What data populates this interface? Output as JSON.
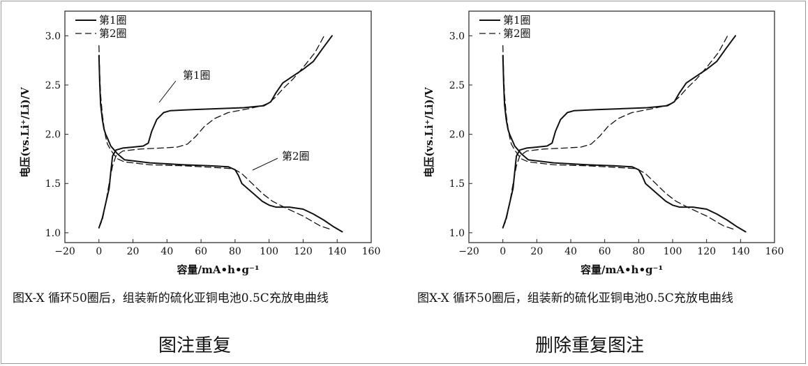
{
  "panels": [
    {
      "caption": "图X-X 循环50圈后，组装新的硫化亚铜电池0.5C充放电曲线",
      "label": "图注重复"
    },
    {
      "caption": "图X-X 循环50圈后，组装新的硫化亚铜电池0.5C充放电曲线",
      "label": "删除重复图注"
    }
  ],
  "chart_data": [
    {
      "type": "line",
      "xlabel": "容量/mA•h•g⁻¹",
      "ylabel": "电压(vs.Li⁺/Li)/V",
      "xlim": [
        -20,
        160
      ],
      "ylim": [
        0.9,
        3.25
      ],
      "xticks": [
        "−20",
        "0",
        "20",
        "40",
        "60",
        "80",
        "100",
        "120",
        "140",
        "160"
      ],
      "yticks": [
        "1.0",
        "1.5",
        "2.0",
        "2.5",
        "3.0"
      ],
      "legend": {
        "position": "top-left",
        "entries": [
          "第1圈",
          "第2圈"
        ]
      },
      "annotations": [
        "第1圈",
        "第2圈"
      ],
      "series": [
        {
          "name": "第1圈",
          "style": "solid",
          "role": "discharge",
          "points": [
            [
              0,
              2.8
            ],
            [
              0.5,
              2.5
            ],
            [
              1,
              2.3
            ],
            [
              2,
              2.15
            ],
            [
              3,
              2.05
            ],
            [
              4,
              2.0
            ],
            [
              5,
              1.96
            ],
            [
              7,
              1.88
            ],
            [
              9,
              1.84
            ],
            [
              11,
              1.8
            ],
            [
              15,
              1.74
            ],
            [
              30,
              1.71
            ],
            [
              50,
              1.69
            ],
            [
              65,
              1.68
            ],
            [
              76,
              1.67
            ],
            [
              80,
              1.64
            ],
            [
              82,
              1.58
            ],
            [
              84,
              1.5
            ],
            [
              88,
              1.44
            ],
            [
              92,
              1.38
            ],
            [
              96,
              1.32
            ],
            [
              100,
              1.28
            ],
            [
              104,
              1.26
            ],
            [
              112,
              1.26
            ],
            [
              120,
              1.24
            ],
            [
              126,
              1.19
            ],
            [
              132,
              1.13
            ],
            [
              138,
              1.06
            ],
            [
              143,
              1.01
            ]
          ]
        },
        {
          "name": "第1圈",
          "style": "solid",
          "role": "charge",
          "points": [
            [
              0,
              1.05
            ],
            [
              2,
              1.15
            ],
            [
              4,
              1.3
            ],
            [
              6,
              1.45
            ],
            [
              7,
              1.62
            ],
            [
              8,
              1.78
            ],
            [
              10,
              1.84
            ],
            [
              14,
              1.86
            ],
            [
              20,
              1.87
            ],
            [
              26,
              1.88
            ],
            [
              29,
              1.91
            ],
            [
              31,
              2.03
            ],
            [
              34,
              2.15
            ],
            [
              38,
              2.22
            ],
            [
              42,
              2.24
            ],
            [
              55,
              2.25
            ],
            [
              70,
              2.26
            ],
            [
              85,
              2.27
            ],
            [
              97,
              2.29
            ],
            [
              101,
              2.33
            ],
            [
              104,
              2.42
            ],
            [
              108,
              2.52
            ],
            [
              114,
              2.59
            ],
            [
              120,
              2.66
            ],
            [
              126,
              2.74
            ],
            [
              131,
              2.86
            ],
            [
              137,
              3.0
            ]
          ]
        },
        {
          "name": "第2圈",
          "style": "dashed",
          "role": "discharge",
          "points": [
            [
              0,
              2.9
            ],
            [
              0.5,
              2.6
            ],
            [
              1,
              2.4
            ],
            [
              2,
              2.2
            ],
            [
              3,
              2.07
            ],
            [
              4,
              1.97
            ],
            [
              5,
              1.9
            ],
            [
              7,
              1.84
            ],
            [
              9,
              1.79
            ],
            [
              11,
              1.75
            ],
            [
              15,
              1.72
            ],
            [
              30,
              1.69
            ],
            [
              50,
              1.68
            ],
            [
              70,
              1.66
            ],
            [
              79,
              1.65
            ],
            [
              84,
              1.6
            ],
            [
              90,
              1.5
            ],
            [
              96,
              1.4
            ],
            [
              102,
              1.32
            ],
            [
              110,
              1.25
            ],
            [
              120,
              1.17
            ],
            [
              130,
              1.07
            ],
            [
              137,
              1.03
            ]
          ]
        },
        {
          "name": "第2圈",
          "style": "dashed",
          "role": "charge",
          "points": [
            [
              0,
              1.05
            ],
            [
              2,
              1.13
            ],
            [
              4,
              1.3
            ],
            [
              6,
              1.5
            ],
            [
              8,
              1.68
            ],
            [
              10,
              1.78
            ],
            [
              14,
              1.83
            ],
            [
              24,
              1.85
            ],
            [
              36,
              1.86
            ],
            [
              46,
              1.87
            ],
            [
              52,
              1.9
            ],
            [
              57,
              1.98
            ],
            [
              62,
              2.08
            ],
            [
              68,
              2.16
            ],
            [
              76,
              2.22
            ],
            [
              88,
              2.26
            ],
            [
              96,
              2.29
            ],
            [
              100,
              2.32
            ],
            [
              104,
              2.38
            ],
            [
              108,
              2.46
            ],
            [
              114,
              2.56
            ],
            [
              121,
              2.7
            ],
            [
              127,
              2.83
            ],
            [
              133,
              3.02
            ]
          ]
        }
      ]
    },
    {
      "type": "line",
      "xlabel": "容量/mA•h•g⁻¹",
      "ylabel": "电压(vs.Li⁺/Li)/V",
      "xlim": [
        -20,
        160
      ],
      "ylim": [
        0.9,
        3.25
      ],
      "xticks": [
        "−20",
        "0",
        "20",
        "40",
        "60",
        "80",
        "100",
        "120",
        "140",
        "160"
      ],
      "yticks": [
        "1.0",
        "1.5",
        "2.0",
        "2.5",
        "3.0"
      ],
      "legend": {
        "position": "top-left",
        "entries": [
          "第1圈",
          "第2圈"
        ]
      },
      "annotations": [],
      "series": [
        {
          "name": "第1圈",
          "style": "solid",
          "role": "discharge",
          "points": [
            [
              0,
              2.8
            ],
            [
              0.5,
              2.5
            ],
            [
              1,
              2.3
            ],
            [
              2,
              2.15
            ],
            [
              3,
              2.05
            ],
            [
              4,
              2.0
            ],
            [
              5,
              1.96
            ],
            [
              7,
              1.88
            ],
            [
              9,
              1.84
            ],
            [
              11,
              1.8
            ],
            [
              15,
              1.74
            ],
            [
              30,
              1.71
            ],
            [
              50,
              1.69
            ],
            [
              65,
              1.68
            ],
            [
              76,
              1.67
            ],
            [
              80,
              1.64
            ],
            [
              82,
              1.58
            ],
            [
              84,
              1.5
            ],
            [
              88,
              1.44
            ],
            [
              92,
              1.38
            ],
            [
              96,
              1.32
            ],
            [
              100,
              1.28
            ],
            [
              104,
              1.26
            ],
            [
              112,
              1.26
            ],
            [
              120,
              1.24
            ],
            [
              126,
              1.19
            ],
            [
              132,
              1.13
            ],
            [
              138,
              1.06
            ],
            [
              143,
              1.01
            ]
          ]
        },
        {
          "name": "第1圈",
          "style": "solid",
          "role": "charge",
          "points": [
            [
              0,
              1.05
            ],
            [
              2,
              1.15
            ],
            [
              4,
              1.3
            ],
            [
              6,
              1.45
            ],
            [
              7,
              1.62
            ],
            [
              8,
              1.78
            ],
            [
              10,
              1.84
            ],
            [
              14,
              1.86
            ],
            [
              20,
              1.87
            ],
            [
              26,
              1.88
            ],
            [
              29,
              1.91
            ],
            [
              31,
              2.03
            ],
            [
              34,
              2.15
            ],
            [
              38,
              2.22
            ],
            [
              42,
              2.24
            ],
            [
              55,
              2.25
            ],
            [
              70,
              2.26
            ],
            [
              85,
              2.27
            ],
            [
              97,
              2.29
            ],
            [
              101,
              2.33
            ],
            [
              104,
              2.42
            ],
            [
              108,
              2.52
            ],
            [
              114,
              2.59
            ],
            [
              120,
              2.66
            ],
            [
              126,
              2.74
            ],
            [
              131,
              2.86
            ],
            [
              137,
              3.0
            ]
          ]
        },
        {
          "name": "第2圈",
          "style": "dashed",
          "role": "discharge",
          "points": [
            [
              0,
              2.9
            ],
            [
              0.5,
              2.6
            ],
            [
              1,
              2.4
            ],
            [
              2,
              2.2
            ],
            [
              3,
              2.07
            ],
            [
              4,
              1.97
            ],
            [
              5,
              1.9
            ],
            [
              7,
              1.84
            ],
            [
              9,
              1.79
            ],
            [
              11,
              1.75
            ],
            [
              15,
              1.72
            ],
            [
              30,
              1.69
            ],
            [
              50,
              1.68
            ],
            [
              70,
              1.66
            ],
            [
              79,
              1.65
            ],
            [
              84,
              1.6
            ],
            [
              90,
              1.5
            ],
            [
              96,
              1.4
            ],
            [
              102,
              1.32
            ],
            [
              110,
              1.25
            ],
            [
              120,
              1.17
            ],
            [
              130,
              1.07
            ],
            [
              137,
              1.03
            ]
          ]
        },
        {
          "name": "第2圈",
          "style": "dashed",
          "role": "charge",
          "points": [
            [
              0,
              1.05
            ],
            [
              2,
              1.13
            ],
            [
              4,
              1.3
            ],
            [
              6,
              1.5
            ],
            [
              8,
              1.68
            ],
            [
              10,
              1.78
            ],
            [
              14,
              1.83
            ],
            [
              24,
              1.85
            ],
            [
              36,
              1.86
            ],
            [
              46,
              1.87
            ],
            [
              52,
              1.9
            ],
            [
              57,
              1.98
            ],
            [
              62,
              2.08
            ],
            [
              68,
              2.16
            ],
            [
              76,
              2.22
            ],
            [
              88,
              2.26
            ],
            [
              96,
              2.29
            ],
            [
              100,
              2.32
            ],
            [
              104,
              2.38
            ],
            [
              108,
              2.46
            ],
            [
              114,
              2.56
            ],
            [
              121,
              2.7
            ],
            [
              127,
              2.83
            ],
            [
              133,
              3.02
            ]
          ]
        }
      ]
    }
  ]
}
